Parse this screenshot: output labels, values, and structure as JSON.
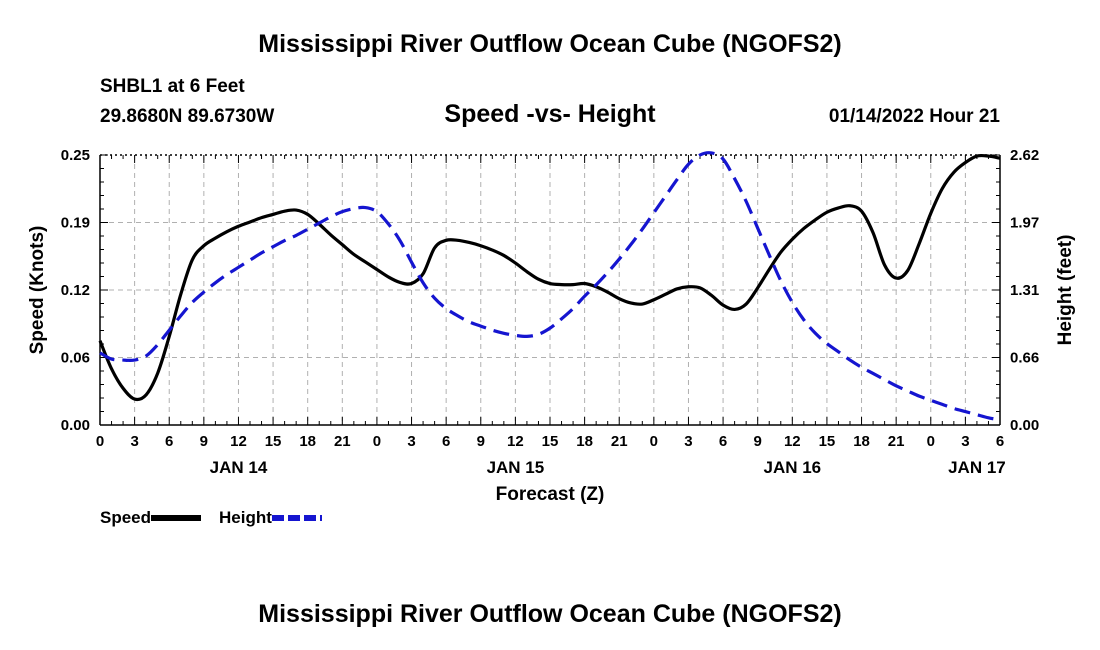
{
  "header": {
    "title": "Mississippi River Outflow Ocean Cube (NGOFS2)",
    "station": "SHBL1 at 6 Feet",
    "coords": "29.8680N  89.6730W",
    "subtitle": "Speed -vs- Height",
    "datetime": "01/14/2022 Hour 21"
  },
  "footer": {
    "title": "Mississippi River Outflow Ocean Cube (NGOFS2)"
  },
  "legend": {
    "speed_label": "Speed",
    "height_label": "Height"
  },
  "colors": {
    "speed": "#000000",
    "height": "#1515d0",
    "grid": "#b0b0b0"
  },
  "chart_data": {
    "type": "line",
    "title": "Speed -vs- Height",
    "xlabel": "Forecast (Z)",
    "ylabel": "Speed (Knots)",
    "y2label": "Height (feet)",
    "x_unit": "hours since 01/14/2022 00Z",
    "xlim": [
      0,
      78
    ],
    "ylim": [
      0,
      0.25
    ],
    "y2lim": [
      0,
      2.62
    ],
    "y_ticks": [
      "0.00",
      "0.06",
      "0.12",
      "0.19",
      "0.25"
    ],
    "y2_ticks": [
      "0.00",
      "0.66",
      "1.31",
      "1.97",
      "2.62"
    ],
    "x_ticks": [
      {
        "hour": 0,
        "label": "0"
      },
      {
        "hour": 3,
        "label": "3"
      },
      {
        "hour": 6,
        "label": "6"
      },
      {
        "hour": 9,
        "label": "9"
      },
      {
        "hour": 12,
        "label": "12"
      },
      {
        "hour": 15,
        "label": "15"
      },
      {
        "hour": 18,
        "label": "18"
      },
      {
        "hour": 21,
        "label": "21"
      },
      {
        "hour": 24,
        "label": "0"
      },
      {
        "hour": 27,
        "label": "3"
      },
      {
        "hour": 30,
        "label": "6"
      },
      {
        "hour": 33,
        "label": "9"
      },
      {
        "hour": 36,
        "label": "12"
      },
      {
        "hour": 39,
        "label": "15"
      },
      {
        "hour": 42,
        "label": "18"
      },
      {
        "hour": 45,
        "label": "21"
      },
      {
        "hour": 48,
        "label": "0"
      },
      {
        "hour": 51,
        "label": "3"
      },
      {
        "hour": 54,
        "label": "6"
      },
      {
        "hour": 57,
        "label": "9"
      },
      {
        "hour": 60,
        "label": "12"
      },
      {
        "hour": 63,
        "label": "15"
      },
      {
        "hour": 66,
        "label": "18"
      },
      {
        "hour": 69,
        "label": "21"
      },
      {
        "hour": 72,
        "label": "0"
      },
      {
        "hour": 75,
        "label": "3"
      },
      {
        "hour": 78,
        "label": "6"
      }
    ],
    "day_labels": [
      {
        "hour": 12,
        "label": "JAN 14"
      },
      {
        "hour": 36,
        "label": "JAN 15"
      },
      {
        "hour": 60,
        "label": "JAN 16"
      },
      {
        "hour": 76,
        "label": "JAN 17"
      }
    ],
    "series": [
      {
        "name": "Speed",
        "axis": "left",
        "style": "solid",
        "x": [
          0,
          1,
          2,
          3,
          4,
          5,
          6,
          7,
          8,
          9,
          10,
          11,
          12,
          13,
          14,
          15,
          16,
          17,
          18,
          19,
          20,
          21,
          22,
          23,
          24,
          25,
          26,
          27,
          28,
          29,
          30,
          31,
          32,
          33,
          34,
          35,
          36,
          37,
          38,
          39,
          40,
          41,
          42,
          43,
          44,
          45,
          46,
          47,
          48,
          49,
          50,
          51,
          52,
          53,
          54,
          55,
          56,
          57,
          58,
          59,
          60,
          61,
          62,
          63,
          64,
          65,
          66,
          67,
          68,
          69,
          70,
          71,
          72,
          73,
          74,
          75,
          76,
          77,
          78
        ],
        "values": [
          0.078,
          0.052,
          0.034,
          0.024,
          0.028,
          0.048,
          0.082,
          0.121,
          0.153,
          0.166,
          0.173,
          0.179,
          0.184,
          0.188,
          0.192,
          0.195,
          0.198,
          0.199,
          0.195,
          0.186,
          0.176,
          0.167,
          0.158,
          0.151,
          0.144,
          0.137,
          0.132,
          0.131,
          0.14,
          0.164,
          0.171,
          0.171,
          0.169,
          0.166,
          0.162,
          0.157,
          0.15,
          0.142,
          0.135,
          0.131,
          0.13,
          0.13,
          0.131,
          0.128,
          0.123,
          0.117,
          0.113,
          0.112,
          0.116,
          0.121,
          0.126,
          0.128,
          0.127,
          0.12,
          0.111,
          0.107,
          0.112,
          0.127,
          0.144,
          0.16,
          0.172,
          0.182,
          0.19,
          0.197,
          0.201,
          0.203,
          0.198,
          0.178,
          0.148,
          0.136,
          0.143,
          0.168,
          0.196,
          0.219,
          0.234,
          0.243,
          0.249,
          0.249,
          0.247
        ]
      },
      {
        "name": "Height",
        "axis": "right",
        "style": "dashed",
        "x": [
          0,
          1,
          2,
          3,
          4,
          5,
          6,
          7,
          8,
          9,
          10,
          11,
          12,
          13,
          14,
          15,
          16,
          17,
          18,
          19,
          20,
          21,
          22,
          23,
          24,
          25,
          26,
          27,
          28,
          29,
          30,
          31,
          32,
          33,
          34,
          35,
          36,
          37,
          38,
          39,
          40,
          41,
          42,
          43,
          44,
          45,
          46,
          47,
          48,
          49,
          50,
          51,
          52,
          53,
          54,
          55,
          56,
          57,
          58,
          59,
          60,
          61,
          62,
          63,
          64,
          65,
          66,
          67,
          68,
          69,
          70,
          71,
          72,
          73,
          74,
          75,
          76,
          77,
          78
        ],
        "values": [
          0.7,
          0.64,
          0.63,
          0.63,
          0.67,
          0.78,
          0.92,
          1.06,
          1.19,
          1.29,
          1.38,
          1.46,
          1.53,
          1.6,
          1.67,
          1.73,
          1.79,
          1.84,
          1.9,
          1.96,
          2.02,
          2.07,
          2.1,
          2.11,
          2.07,
          1.95,
          1.79,
          1.58,
          1.38,
          1.23,
          1.13,
          1.06,
          1.0,
          0.96,
          0.92,
          0.89,
          0.87,
          0.86,
          0.88,
          0.94,
          1.03,
          1.13,
          1.25,
          1.36,
          1.48,
          1.61,
          1.75,
          1.9,
          2.06,
          2.22,
          2.38,
          2.53,
          2.62,
          2.64,
          2.58,
          2.39,
          2.17,
          1.91,
          1.65,
          1.4,
          1.19,
          1.02,
          0.89,
          0.79,
          0.71,
          0.63,
          0.56,
          0.5,
          0.44,
          0.38,
          0.33,
          0.28,
          0.24,
          0.2,
          0.16,
          0.13,
          0.1,
          0.07,
          0.05
        ]
      }
    ]
  }
}
